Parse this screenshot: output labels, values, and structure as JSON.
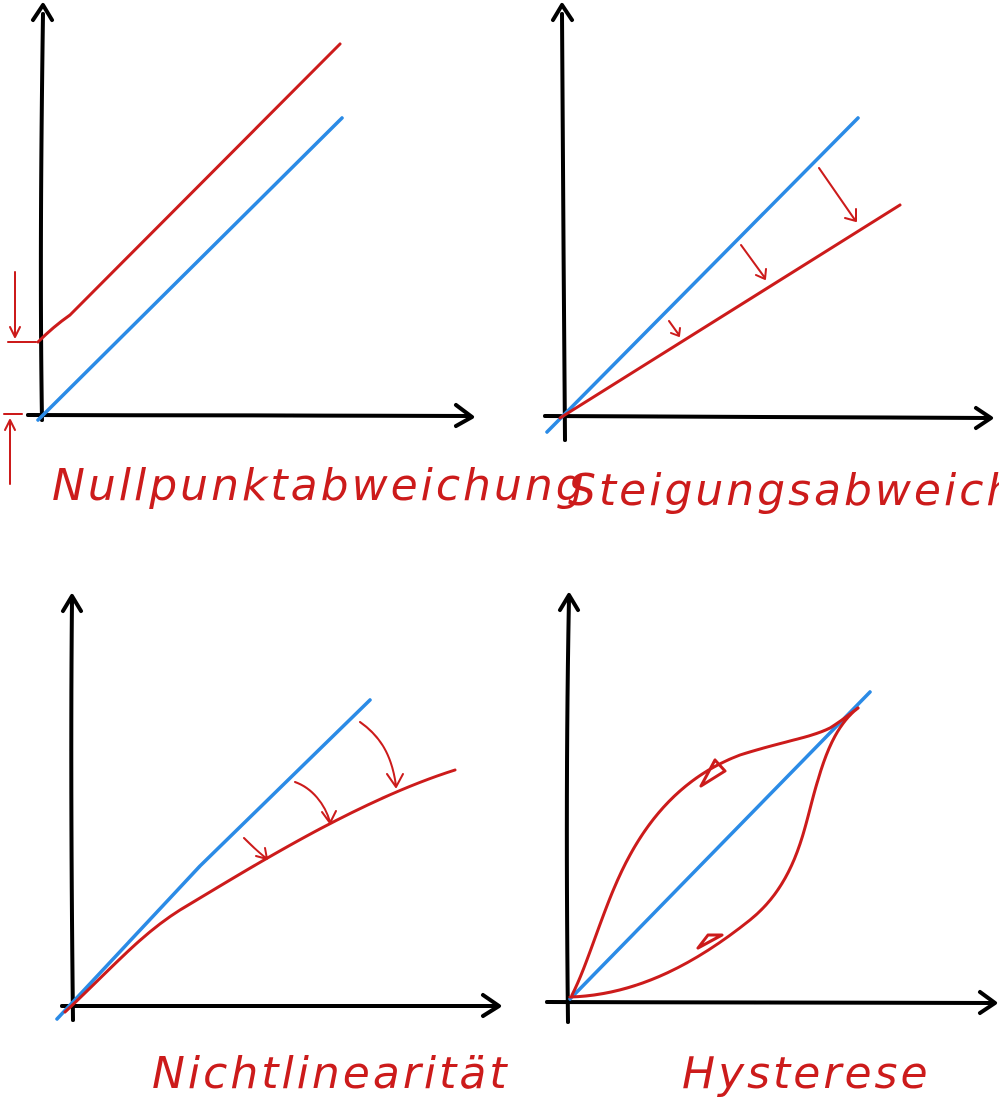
{
  "panels": [
    {
      "caption": "Nullpunktabweichung"
    },
    {
      "caption": "Steigungsabweichung"
    },
    {
      "caption": "Nichtlinearität"
    },
    {
      "caption": "Hysterese"
    }
  ],
  "colors": {
    "axis": "#000000",
    "ideal_line": "#2b8be6",
    "error_line": "#cc1b1b"
  }
}
